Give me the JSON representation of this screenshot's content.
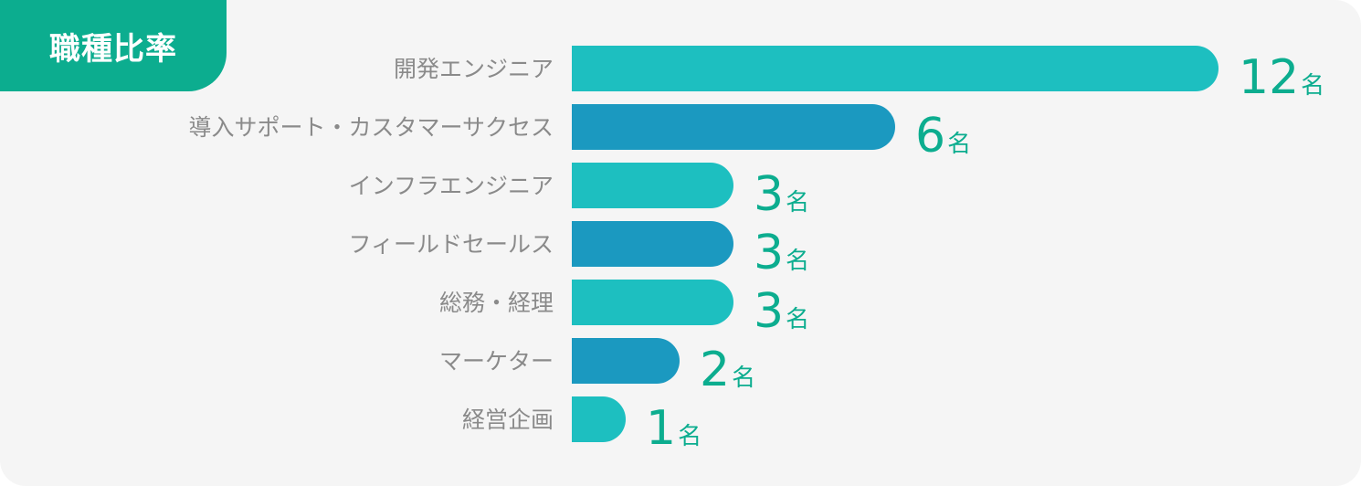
{
  "header": {
    "title": "職種比率"
  },
  "chart_data": {
    "type": "bar",
    "orientation": "horizontal",
    "categories": [
      "開発エンジニア",
      "導入サポート・カスタマーサクセス",
      "インフラエンジニア",
      "フィールドセールス",
      "総務・経理",
      "マーケター",
      "経営企画"
    ],
    "values": [
      12,
      6,
      3,
      3,
      3,
      2,
      1
    ],
    "value_unit": "名",
    "bar_colors": [
      "#1dbfc0",
      "#1b99c0"
    ],
    "value_color": "#0cad8f",
    "grid": false,
    "legend": "none"
  }
}
